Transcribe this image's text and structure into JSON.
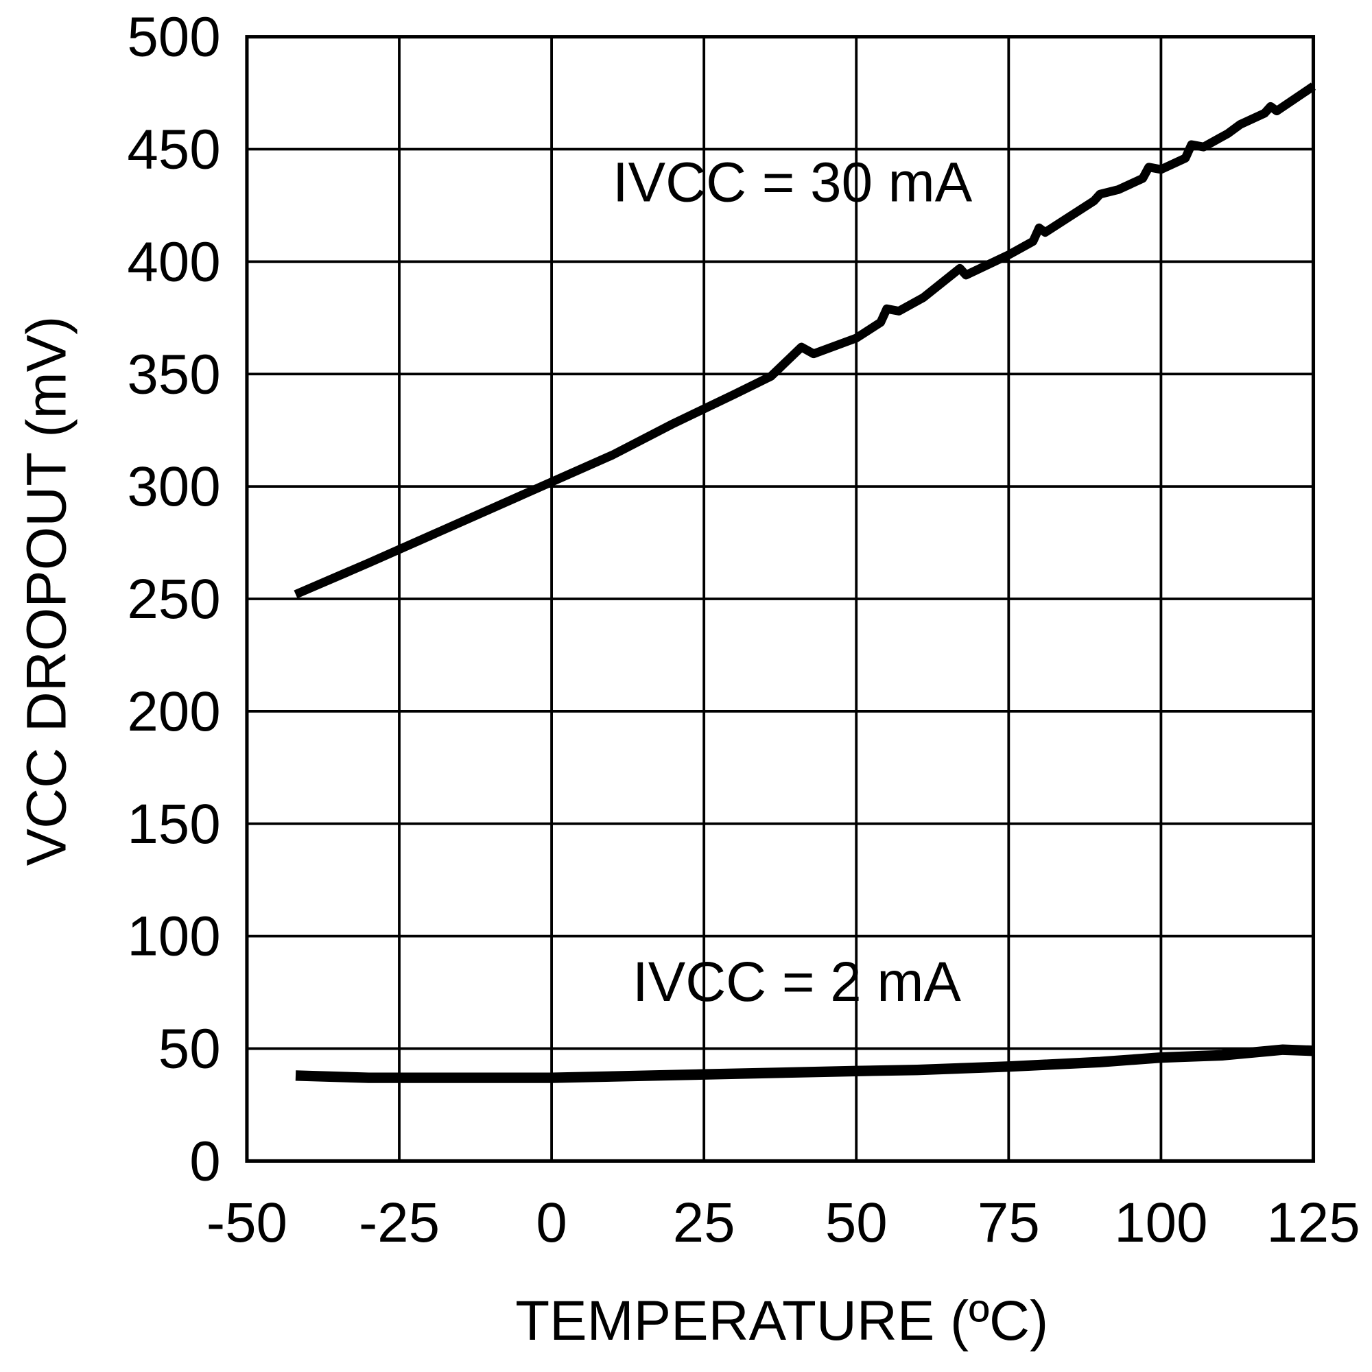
{
  "chart_data": {
    "type": "line",
    "title": "",
    "xlabel": "TEMPERATURE (ºC)",
    "ylabel": "VCC DROPOUT (mV)",
    "xlim": [
      -50,
      125
    ],
    "ylim": [
      0,
      500
    ],
    "xticks": [
      -50,
      -25,
      0,
      25,
      50,
      75,
      100,
      125
    ],
    "yticks": [
      0,
      50,
      100,
      150,
      200,
      250,
      300,
      350,
      400,
      450,
      500
    ],
    "grid": true,
    "line_color": "#000000",
    "series": [
      {
        "name": "IVCC = 30 mA",
        "x": [
          -42,
          -30,
          -20,
          -10,
          0,
          10,
          20,
          30,
          36,
          41,
          43,
          50,
          54,
          55,
          57,
          61,
          67,
          68,
          75,
          79,
          80,
          81,
          89,
          90,
          93,
          97,
          98,
          100,
          104,
          105,
          107,
          111,
          113,
          117,
          118,
          119,
          125
        ],
        "y": [
          252,
          266,
          278,
          290,
          302,
          314,
          328,
          341,
          349,
          362,
          359,
          366,
          373,
          379,
          378,
          384,
          397,
          394,
          403,
          409,
          415,
          413,
          427,
          430,
          432,
          437,
          442,
          441,
          446,
          452,
          451,
          457,
          461,
          466,
          469,
          467,
          478
        ]
      },
      {
        "name": "IVCC = 2 mA",
        "x": [
          -42,
          -30,
          -20,
          0,
          25,
          50,
          60,
          75,
          90,
          100,
          110,
          120,
          125
        ],
        "y": [
          38,
          37,
          37,
          37,
          38.5,
          40,
          40.5,
          42,
          44,
          46,
          47,
          49.5,
          49
        ]
      }
    ]
  }
}
